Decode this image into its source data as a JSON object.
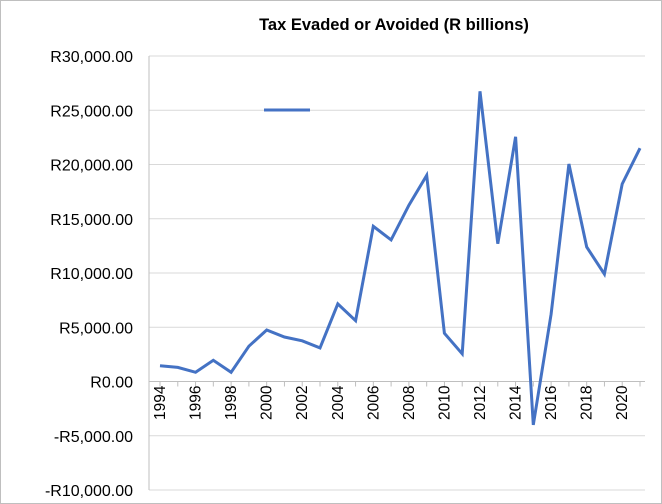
{
  "chart_data": {
    "type": "line",
    "title": "Tax Evaded or Avoided (R billions)",
    "xlabel": "",
    "ylabel": "",
    "ylim": [
      -10000,
      30000
    ],
    "y_ticks": [
      30000,
      25000,
      20000,
      15000,
      10000,
      5000,
      0,
      -5000,
      -10000
    ],
    "y_tick_labels": [
      "R30,000.00",
      "R25,000.00",
      "R20,000.00",
      "R15,000.00",
      "R10,000.00",
      "R5,000.00",
      "R0.00",
      "-R5,000.00",
      "-R10,000.00"
    ],
    "x_tick_labels": [
      "1994",
      "1996",
      "1998",
      "2000",
      "2002",
      "2004",
      "2006",
      "2008",
      "2010",
      "2012",
      "2014",
      "2016",
      "2018",
      "2020"
    ],
    "gridlines": true,
    "legend": {
      "position": "top-left",
      "entries": [
        ""
      ]
    },
    "colors": {
      "line": "#4472C4",
      "grid": "#d9d9d9",
      "axis": "#bfbfbf"
    },
    "series": [
      {
        "x": [
          1994,
          1995,
          1996,
          1997,
          1998,
          1999,
          2000,
          2001,
          2002,
          2003,
          2004,
          2005,
          2006,
          2007,
          2008,
          2009,
          2010,
          2011,
          2012,
          2013,
          2014,
          2015,
          2016,
          2017,
          2018,
          2019,
          2020,
          2021
        ],
        "values": [
          1450,
          1300,
          850,
          1950,
          850,
          3250,
          4750,
          4100,
          3750,
          3100,
          7150,
          5600,
          14300,
          13050,
          16250,
          19000,
          4450,
          2550,
          26750,
          12700,
          22550,
          -4000,
          6200,
          20050,
          12400,
          9900,
          18200,
          21500
        ]
      }
    ]
  }
}
